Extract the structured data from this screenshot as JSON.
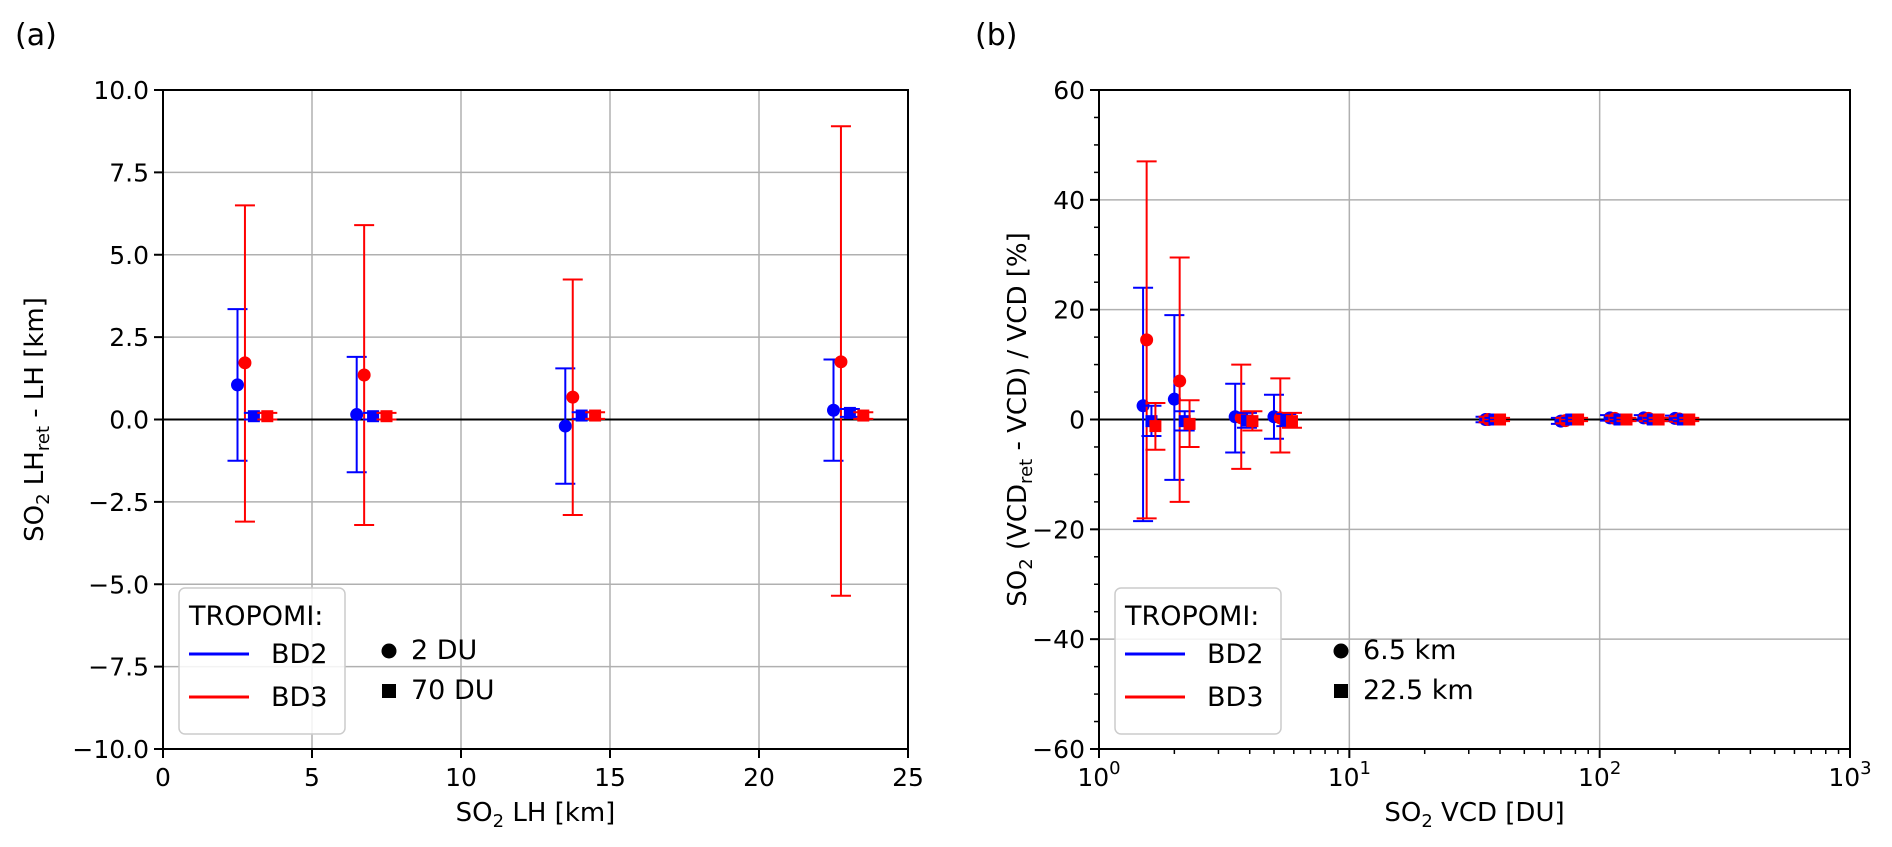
{
  "chart_data": [
    {
      "type": "scatter",
      "panel_label": "(a)",
      "xlabel": {
        "prefix": "SO",
        "sub": "2",
        "rest": " LH [km]"
      },
      "ylabel": {
        "prefix": "SO",
        "sub": "2",
        "mid": " LH",
        "sub2": "ret",
        "rest": " - LH [km]"
      },
      "xlim": [
        0,
        25
      ],
      "ylim": [
        -10,
        10
      ],
      "xscale": "linear",
      "xticks": [
        0,
        5,
        10,
        15,
        20,
        25
      ],
      "xtick_labels": [
        "0",
        "5",
        "10",
        "15",
        "20",
        "25"
      ],
      "yticks": [
        -10,
        -7.5,
        -5,
        -2.5,
        0,
        2.5,
        5,
        7.5,
        10
      ],
      "ytick_labels": [
        "−10.0",
        "−7.5",
        "−5.0",
        "−2.5",
        "0.0",
        "2.5",
        "5.0",
        "7.5",
        "10.0"
      ],
      "grid": true,
      "zero_line": true,
      "legend": {
        "placement": "lower-left",
        "title": "TROPOMI:",
        "lines": [
          {
            "label": "BD2",
            "color": "#0000ff"
          },
          {
            "label": "BD3",
            "color": "#ff0000"
          }
        ],
        "markers": [
          {
            "label": "2 DU",
            "marker": "circle"
          },
          {
            "label": "70 DU",
            "marker": "square"
          }
        ]
      },
      "series": [
        {
          "band": "BD2",
          "color": "#0000ff",
          "marker": "circle",
          "points": [
            {
              "x": 2.5,
              "y": 1.05,
              "lo": -1.25,
              "hi": 3.35
            },
            {
              "x": 6.5,
              "y": 0.15,
              "lo": -1.6,
              "hi": 1.9
            },
            {
              "x": 13.5,
              "y": -0.2,
              "lo": -1.95,
              "hi": 1.55
            },
            {
              "x": 22.5,
              "y": 0.28,
              "lo": -1.25,
              "hi": 1.82
            }
          ]
        },
        {
          "band": "BD3",
          "color": "#ff0000",
          "marker": "circle",
          "points": [
            {
              "x": 2.75,
              "y": 1.72,
              "lo": -3.1,
              "hi": 6.5
            },
            {
              "x": 6.75,
              "y": 1.35,
              "lo": -3.2,
              "hi": 5.9
            },
            {
              "x": 13.75,
              "y": 0.68,
              "lo": -2.9,
              "hi": 4.25
            },
            {
              "x": 22.75,
              "y": 1.75,
              "lo": -5.35,
              "hi": 8.9
            }
          ]
        },
        {
          "band": "BD2",
          "color": "#0000ff",
          "marker": "square",
          "points": [
            {
              "x": 3.05,
              "y": 0.1,
              "lo": 0.0,
              "hi": 0.2
            },
            {
              "x": 7.05,
              "y": 0.1,
              "lo": 0.0,
              "hi": 0.2
            },
            {
              "x": 14.05,
              "y": 0.12,
              "lo": 0.02,
              "hi": 0.22
            },
            {
              "x": 23.05,
              "y": 0.2,
              "lo": 0.08,
              "hi": 0.32
            }
          ]
        },
        {
          "band": "BD3",
          "color": "#ff0000",
          "marker": "square",
          "points": [
            {
              "x": 3.5,
              "y": 0.1,
              "lo": 0.0,
              "hi": 0.2
            },
            {
              "x": 7.5,
              "y": 0.1,
              "lo": 0.0,
              "hi": 0.2
            },
            {
              "x": 14.5,
              "y": 0.12,
              "lo": 0.02,
              "hi": 0.22
            },
            {
              "x": 23.5,
              "y": 0.12,
              "lo": 0.02,
              "hi": 0.22
            }
          ]
        }
      ]
    },
    {
      "type": "scatter",
      "panel_label": "(b)",
      "xlabel": {
        "prefix": "SO",
        "sub": "2",
        "rest": " VCD [DU]"
      },
      "ylabel": {
        "prefix": "SO",
        "sub": "2",
        "mid": " (VCD",
        "sub2": "ret",
        "rest": " - VCD) / VCD [%]"
      },
      "xlim": [
        1,
        1000
      ],
      "ylim": [
        -60,
        60
      ],
      "xscale": "log",
      "xticks": [
        1,
        10,
        100,
        1000
      ],
      "xtick_labels": [
        {
          "base": "10",
          "exp": "0"
        },
        {
          "base": "10",
          "exp": "1"
        },
        {
          "base": "10",
          "exp": "2"
        },
        {
          "base": "10",
          "exp": "3"
        }
      ],
      "yticks": [
        -60,
        -40,
        -20,
        0,
        20,
        40,
        60
      ],
      "ytick_labels": [
        "−60",
        "−40",
        "−20",
        "0",
        "20",
        "40",
        "60"
      ],
      "grid": true,
      "zero_line": true,
      "legend": {
        "placement": "lower-left",
        "title": "TROPOMI:",
        "lines": [
          {
            "label": "BD2",
            "color": "#0000ff"
          },
          {
            "label": "BD3",
            "color": "#ff0000"
          }
        ],
        "markers": [
          {
            "label": "6.5 km",
            "marker": "circle"
          },
          {
            "label": "22.5 km",
            "marker": "square"
          }
        ]
      },
      "series": [
        {
          "band": "BD2",
          "color": "#0000ff",
          "marker": "circle",
          "points": [
            {
              "x": 1.5,
              "y": 2.5,
              "lo": -18.5,
              "hi": 24
            },
            {
              "x": 2.0,
              "y": 3.7,
              "lo": -11,
              "hi": 19
            },
            {
              "x": 3.5,
              "y": 0.5,
              "lo": -6,
              "hi": 6.5
            },
            {
              "x": 5.0,
              "y": 0.5,
              "lo": -3.5,
              "hi": 4.5
            },
            {
              "x": 35,
              "y": 0.0,
              "lo": -0.5,
              "hi": 0.5
            },
            {
              "x": 70,
              "y": -0.3,
              "lo": -0.8,
              "hi": 0.3
            },
            {
              "x": 110,
              "y": 0.3,
              "lo": -0.2,
              "hi": 0.8
            },
            {
              "x": 150,
              "y": 0.3,
              "lo": -0.2,
              "hi": 0.8
            },
            {
              "x": 200,
              "y": 0.2,
              "lo": -0.3,
              "hi": 0.7
            }
          ]
        },
        {
          "band": "BD3",
          "color": "#ff0000",
          "marker": "circle",
          "points": [
            {
              "x": 1.55,
              "y": 14.5,
              "lo": -18,
              "hi": 47
            },
            {
              "x": 2.1,
              "y": 7.0,
              "lo": -15,
              "hi": 29.5
            },
            {
              "x": 3.7,
              "y": 0.3,
              "lo": -9,
              "hi": 10
            },
            {
              "x": 5.3,
              "y": 0.3,
              "lo": -6,
              "hi": 7.5
            },
            {
              "x": 36,
              "y": 0.0,
              "lo": -0.5,
              "hi": 0.5
            },
            {
              "x": 73,
              "y": -0.2,
              "lo": -0.7,
              "hi": 0.3
            },
            {
              "x": 115,
              "y": 0.2,
              "lo": -0.3,
              "hi": 0.7
            },
            {
              "x": 157,
              "y": 0.2,
              "lo": -0.3,
              "hi": 0.7
            },
            {
              "x": 208,
              "y": 0.1,
              "lo": -0.4,
              "hi": 0.6
            }
          ]
        },
        {
          "band": "BD2",
          "color": "#0000ff",
          "marker": "square",
          "points": [
            {
              "x": 1.62,
              "y": -0.3,
              "lo": -3,
              "hi": 2.5
            },
            {
              "x": 2.2,
              "y": -0.3,
              "lo": -2,
              "hi": 1.5
            },
            {
              "x": 3.9,
              "y": -0.2,
              "lo": -1.5,
              "hi": 1.2
            },
            {
              "x": 5.6,
              "y": -0.2,
              "lo": -1.2,
              "hi": 1
            },
            {
              "x": 38,
              "y": 0.0,
              "lo": -0.3,
              "hi": 0.3
            },
            {
              "x": 77,
              "y": 0.0,
              "lo": -0.3,
              "hi": 0.3
            },
            {
              "x": 120,
              "y": 0.0,
              "lo": -0.3,
              "hi": 0.3
            },
            {
              "x": 163,
              "y": 0.0,
              "lo": -0.3,
              "hi": 0.3
            },
            {
              "x": 215,
              "y": 0.0,
              "lo": -0.3,
              "hi": 0.3
            }
          ]
        },
        {
          "band": "BD3",
          "color": "#ff0000",
          "marker": "square",
          "points": [
            {
              "x": 1.68,
              "y": -1.2,
              "lo": -5.5,
              "hi": 3
            },
            {
              "x": 2.3,
              "y": -0.8,
              "lo": -5,
              "hi": 3.5
            },
            {
              "x": 4.1,
              "y": -0.3,
              "lo": -2,
              "hi": 1.5
            },
            {
              "x": 5.9,
              "y": -0.3,
              "lo": -1.5,
              "hi": 1.2
            },
            {
              "x": 40,
              "y": 0.0,
              "lo": -0.3,
              "hi": 0.3
            },
            {
              "x": 82,
              "y": 0.0,
              "lo": -0.3,
              "hi": 0.3
            },
            {
              "x": 128,
              "y": 0.0,
              "lo": -0.3,
              "hi": 0.3
            },
            {
              "x": 172,
              "y": 0.0,
              "lo": -0.3,
              "hi": 0.3
            },
            {
              "x": 228,
              "y": 0.0,
              "lo": -0.3,
              "hi": 0.3
            }
          ]
        }
      ]
    }
  ]
}
